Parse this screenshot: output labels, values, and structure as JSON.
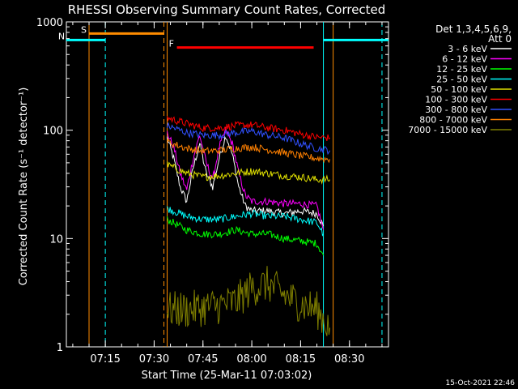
{
  "chart_data": {
    "type": "line",
    "title": "RHESSI Observing Summary Count Rates, Corrected",
    "xlabel": "Start Time (25-Mar-11 07:03:02)",
    "ylabel": "Corrected Count Rate (s⁻¹ detector⁻¹)",
    "yscale": "log",
    "ylim": [
      1,
      1000
    ],
    "xlim": [
      "07:03:02",
      "08:42:00"
    ],
    "x_ticks": [
      "07:15",
      "07:30",
      "07:45",
      "08:00",
      "08:15",
      "08:30"
    ],
    "y_ticks": [
      "1",
      "10",
      "100",
      "1000"
    ],
    "legend_header": [
      "Det 1,3,4,5,6,9,",
      "Att 0"
    ],
    "legend_position": "right",
    "timestamp": "15-Oct-2021 22:46",
    "series": [
      {
        "name": "3 - 6 keV",
        "color": "#ffffff",
        "x": [
          "07:34",
          "07:36",
          "07:38",
          "07:40",
          "07:42",
          "07:44",
          "07:46",
          "07:48",
          "07:50",
          "07:52",
          "07:54",
          "07:56",
          "07:58",
          "08:00",
          "08:05",
          "08:10",
          "08:15",
          "08:20",
          "08:22"
        ],
        "y": [
          85,
          55,
          30,
          22,
          45,
          75,
          40,
          30,
          55,
          90,
          60,
          30,
          20,
          18,
          18,
          17,
          18,
          17,
          13
        ]
      },
      {
        "name": "6 - 12 keV",
        "color": "#ff00ff",
        "x": [
          "07:34",
          "07:36",
          "07:38",
          "07:40",
          "07:42",
          "07:44",
          "07:46",
          "07:48",
          "07:50",
          "07:52",
          "07:54",
          "07:56",
          "07:58",
          "08:00",
          "08:05",
          "08:10",
          "08:15",
          "08:20",
          "08:22"
        ],
        "y": [
          95,
          70,
          40,
          28,
          55,
          90,
          50,
          35,
          70,
          100,
          75,
          40,
          25,
          22,
          22,
          21,
          21,
          20,
          12
        ]
      },
      {
        "name": "12 - 25 keV",
        "color": "#00ff00",
        "x": [
          "07:34",
          "07:40",
          "07:45",
          "07:50",
          "07:55",
          "08:00",
          "08:05",
          "08:10",
          "08:15",
          "08:20",
          "08:22"
        ],
        "y": [
          15,
          12,
          11,
          11,
          12,
          11,
          11,
          10,
          9.5,
          9,
          7
        ]
      },
      {
        "name": "25 - 50 keV",
        "color": "#00ffff",
        "x": [
          "07:34",
          "07:40",
          "07:45",
          "07:50",
          "07:55",
          "08:00",
          "08:05",
          "08:10",
          "08:15",
          "08:20",
          "08:22"
        ],
        "y": [
          19,
          16,
          15,
          15,
          16,
          17,
          16,
          16,
          15,
          14,
          11
        ]
      },
      {
        "name": "50 - 100 keV",
        "color": "#e0e000",
        "x": [
          "07:34",
          "07:40",
          "07:45",
          "07:50",
          "07:55",
          "08:00",
          "08:05",
          "08:10",
          "08:15",
          "08:20",
          "08:24"
        ],
        "y": [
          48,
          40,
          37,
          38,
          40,
          42,
          40,
          38,
          37,
          35,
          35
        ]
      },
      {
        "name": "100 - 300 keV",
        "color": "#ff0000",
        "x": [
          "07:34",
          "07:40",
          "07:45",
          "07:50",
          "07:55",
          "08:00",
          "08:05",
          "08:10",
          "08:15",
          "08:20",
          "08:24"
        ],
        "y": [
          130,
          115,
          105,
          105,
          110,
          112,
          105,
          100,
          92,
          86,
          85
        ]
      },
      {
        "name": "300 - 800 keV",
        "color": "#3050ff",
        "x": [
          "07:34",
          "07:40",
          "07:45",
          "07:50",
          "07:55",
          "08:00",
          "08:05",
          "08:10",
          "08:15",
          "08:20",
          "08:24"
        ],
        "y": [
          110,
          95,
          90,
          90,
          95,
          98,
          90,
          85,
          75,
          68,
          65
        ]
      },
      {
        "name": "800 - 7000 keV",
        "color": "#ff8000",
        "x": [
          "07:34",
          "07:40",
          "07:45",
          "07:50",
          "07:55",
          "08:00",
          "08:05",
          "08:10",
          "08:15",
          "08:20",
          "08:24"
        ],
        "y": [
          78,
          68,
          64,
          65,
          68,
          70,
          66,
          62,
          58,
          55,
          54
        ]
      },
      {
        "name": "7000 - 15000 keV",
        "color": "#808000",
        "x": [
          "07:34",
          "07:40",
          "07:45",
          "07:50",
          "07:55",
          "08:00",
          "08:05",
          "08:10",
          "08:15",
          "08:20",
          "08:24"
        ],
        "y": [
          2.2,
          2.2,
          2.3,
          2.4,
          2.6,
          3.5,
          3.8,
          3.0,
          2.5,
          2.2,
          1.5
        ]
      }
    ],
    "annotations": [
      {
        "label": "S",
        "color": "#ff8c00",
        "x_start": "07:10",
        "x_end": "07:33",
        "y": 780
      },
      {
        "label": "N",
        "color": "#00ffff",
        "x_start": "07:03",
        "x_end": "07:15",
        "y": 680
      },
      {
        "label": "F",
        "color": "#ff0000",
        "x_start": "07:37",
        "x_end": "08:19",
        "y": 580
      },
      {
        "label": "",
        "color": "#00ffff",
        "x_start": "08:22",
        "x_end": "08:42",
        "y": 680
      }
    ],
    "vlines": [
      {
        "x": "07:10",
        "color": "#ff8c00",
        "style": "solid"
      },
      {
        "x": "07:33",
        "color": "#ff8c00",
        "style": "dashed"
      },
      {
        "x": "07:34",
        "color": "#ff8c00",
        "style": "solid"
      },
      {
        "x": "08:25",
        "color": "#ff8c00",
        "style": "solid"
      },
      {
        "x": "07:15",
        "color": "#00ffff",
        "style": "dashed"
      },
      {
        "x": "08:22",
        "color": "#00ffff",
        "style": "solid"
      },
      {
        "x": "08:40",
        "color": "#00ffff",
        "style": "dashed"
      }
    ]
  }
}
